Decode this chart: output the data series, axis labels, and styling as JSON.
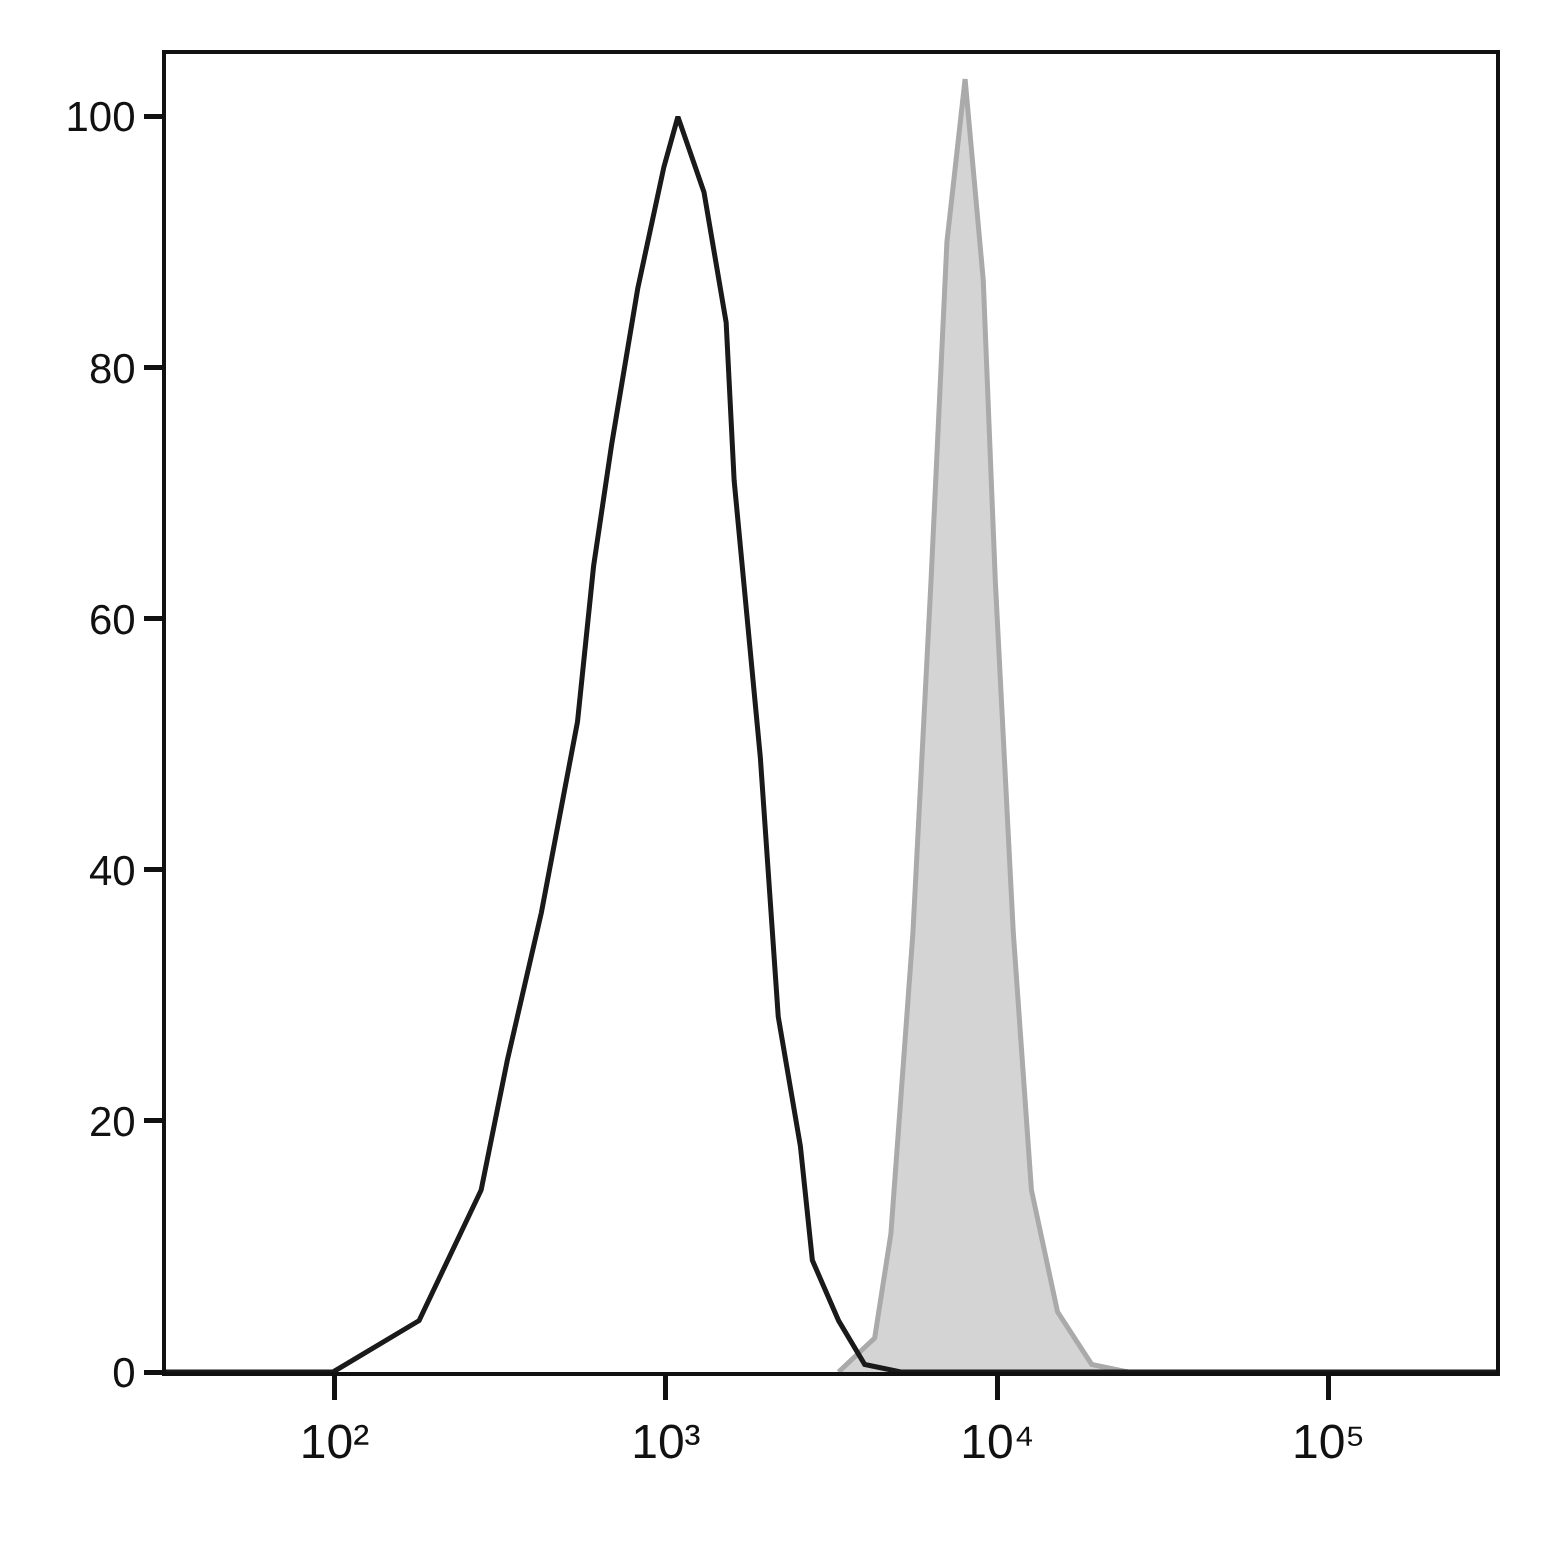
{
  "chart_data": {
    "type": "line",
    "log": "x",
    "grid": false,
    "marker": "none",
    "line_style": "solid",
    "xlim": [
      31,
      320000
    ],
    "xticks": [
      {
        "value": 100,
        "label": "10²"
      },
      {
        "value": 1000,
        "label": "10³"
      },
      {
        "value": 10000,
        "label": "10⁴"
      },
      {
        "value": 100000,
        "label": "10⁵"
      }
    ],
    "ylim": [
      0,
      105
    ],
    "yticks": [
      0,
      20,
      40,
      60,
      80,
      100
    ],
    "series": [
      {
        "type": "area",
        "color": "#aaaaaa",
        "x": [
          3319,
          4266,
          4775,
          5565,
          6310,
          7047,
          7998,
          9072,
          9866,
          11180,
          12680,
          15200,
          19280,
          24770
        ],
        "values": [
          0,
          2.7,
          11,
          35,
          63,
          90,
          103,
          87,
          63,
          35,
          14.5,
          4.8,
          0.6,
          0
        ]
      },
      {
        "color": "#1a1a1a",
        "x": [
          31,
          60,
          99,
          180,
          277,
          332,
          421,
          541,
          605,
          686,
          822,
          986,
          1087,
          1303,
          1520,
          1607,
          1927,
          2183,
          2546,
          2767,
          3319,
          3981,
          5117,
          320000
        ],
        "values": [
          0,
          0,
          0,
          4.1,
          14.5,
          24.8,
          36.6,
          51.8,
          64.2,
          73.9,
          86.3,
          96,
          100,
          94,
          83.6,
          71,
          49,
          28.3,
          18,
          8.9,
          4.1,
          0.6,
          0,
          0
        ]
      }
    ]
  }
}
